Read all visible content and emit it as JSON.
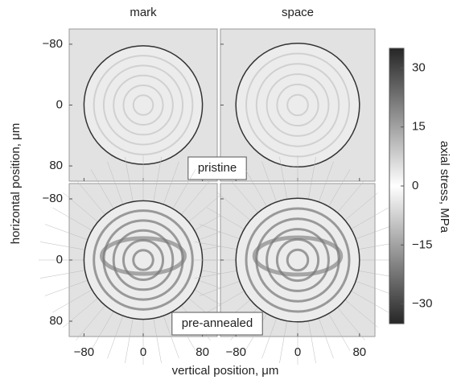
{
  "chart_data": {
    "type": "heatmap",
    "columns": [
      "mark",
      "space"
    ],
    "rows": [
      "pristine",
      "pre-annealed"
    ],
    "xlabel": "vertical position, μm",
    "ylabel": "horizontal position, μm",
    "xlim": [
      -100,
      100
    ],
    "ylim": [
      -100,
      100
    ],
    "xticks": [
      {
        "value": -80,
        "label": "−80"
      },
      0,
      80
    ],
    "yticks": [
      {
        "value": -80,
        "label": "−80"
      },
      0,
      80
    ],
    "colorbar": {
      "label": "axial stress, MPa",
      "clim": [
        -35,
        35
      ],
      "ticks": [
        30,
        15,
        0,
        {
          "value": -15,
          "label": "−15"
        },
        {
          "value": -30,
          "label": "−30"
        }
      ],
      "colors": [
        "#262626",
        "#ffffff",
        "#262626"
      ]
    }
  }
}
